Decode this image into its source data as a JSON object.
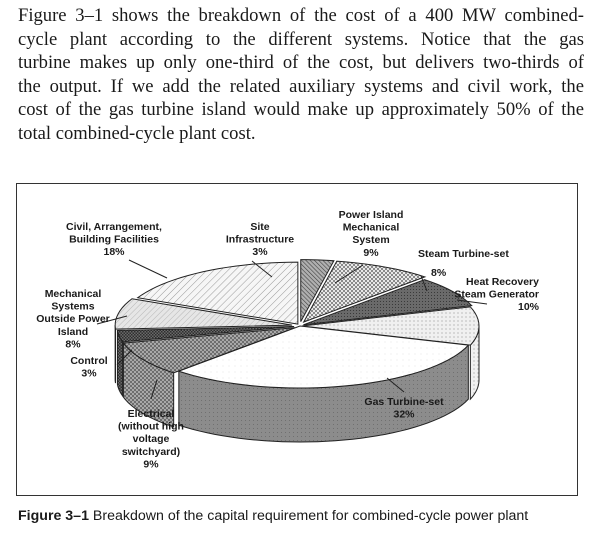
{
  "body_text": {
    "lines": [
      "Figure 3–1 shows the breakdown of the cost of a 400 MW combined-",
      "cycle plant according to the different systems. Notice that the gas",
      "turbine makes up only one-third of the cost, but delivers two-thirds of",
      "the output. If we add the related auxiliary systems and civil work, the",
      "cost of the gas turbine island would make up approximately 50% of the",
      "total combined-cycle plant cost."
    ]
  },
  "chart_data": {
    "type": "pie",
    "style": "3d-exploded",
    "slices": [
      {
        "label_lines": [
          "Site",
          "Infrastructure"
        ],
        "percent_text": "3%",
        "value": 3,
        "pattern": "diag-dense",
        "color": "#808080"
      },
      {
        "label_lines": [
          "Power Island",
          "Mechanical",
          "System"
        ],
        "percent_text": "9%",
        "value": 9,
        "pattern": "checker",
        "color": "#bdbdbd"
      },
      {
        "label_lines": [
          "Steam Turbine-set"
        ],
        "percent_text": "8%",
        "value": 8,
        "pattern": "dark",
        "color": "#5e5e5e"
      },
      {
        "label_lines": [
          "Heat Recovery",
          "Steam Generator"
        ],
        "percent_text": "10%",
        "value": 10,
        "pattern": "light-dots",
        "color": "#e4e4e4"
      },
      {
        "label_lines": [
          "Gas Turbine-set"
        ],
        "percent_text": "32%",
        "value": 32,
        "pattern": "white",
        "color": "#ffffff"
      },
      {
        "label_lines": [
          "Electrical",
          "(without high",
          "voltage",
          "switchyard)"
        ],
        "percent_text": "9%",
        "value": 9,
        "pattern": "crosshatch",
        "color": "#a9a9a9"
      },
      {
        "label_lines": [
          "Control"
        ],
        "percent_text": "3%",
        "value": 3,
        "pattern": "dark-check",
        "color": "#6e6e6e"
      },
      {
        "label_lines": [
          "Mechanical",
          "Systems",
          "Outside Power",
          "Island"
        ],
        "percent_text": "8%",
        "value": 8,
        "pattern": "light-diag",
        "color": "#d8d8d8"
      },
      {
        "label_lines": [
          "Civil, Arrangement,",
          "Building Facilities"
        ],
        "percent_text": "18%",
        "value": 18,
        "pattern": "hatch",
        "color": "#f2f2f2"
      }
    ]
  },
  "caption": {
    "label": "Figure 3–1",
    "text": " Breakdown of the capital requirement for combined-cycle power plant"
  }
}
